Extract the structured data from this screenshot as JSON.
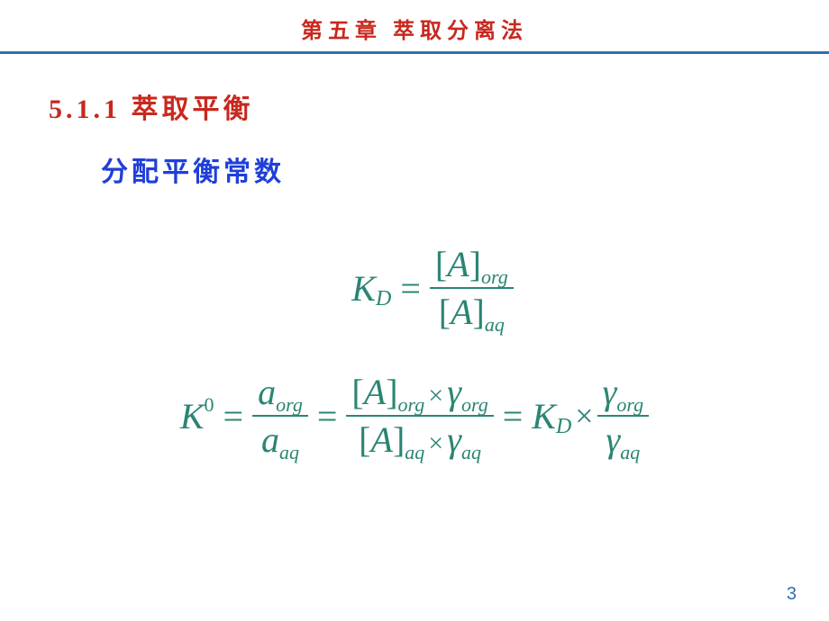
{
  "colors": {
    "chapter_title": "#c8281e",
    "hr_line": "#2f6eb5",
    "section_title": "#c8281e",
    "sub_title": "#1f3fd8",
    "formula": "#2b8574",
    "page_num": "#2f6eb5"
  },
  "fonts": {
    "chapter_title_size": 24,
    "section_title_size": 30,
    "sub_title_size": 30,
    "formula_main_size": 40,
    "page_num_size": 20
  },
  "chapter_title": "第五章 萃取分离法",
  "section_title": "5.1.1 萃取平衡",
  "sub_title": "分配平衡常数",
  "eq1": {
    "lhs_sym": "K",
    "lhs_sub": "D",
    "eq": "=",
    "num_lb": "[",
    "num_var": "A",
    "num_rb": "]",
    "num_sub": "org",
    "den_lb": "[",
    "den_var": "A",
    "den_rb": "]",
    "den_sub": "aq"
  },
  "eq2": {
    "lhs_sym": "K",
    "lhs_sup": "0",
    "eq": "=",
    "f1_num_var": "a",
    "f1_num_sub": "org",
    "f1_den_var": "a",
    "f1_den_sub": "aq",
    "f2_num_lb": "[",
    "f2_num_var": "A",
    "f2_num_rb": "]",
    "f2_num_sub": "org",
    "mult": "×",
    "f2_num_g": "γ",
    "f2_num_gsub": "org",
    "f2_den_lb": "[",
    "f2_den_var": "A",
    "f2_den_rb": "]",
    "f2_den_sub": "aq",
    "f2_den_g": "γ",
    "f2_den_gsub": "aq",
    "r_sym": "K",
    "r_sub": "D",
    "f3_num_g": "γ",
    "f3_num_sub": "org",
    "f3_den_g": "γ",
    "f3_den_sub": "aq"
  },
  "page_number": "3"
}
